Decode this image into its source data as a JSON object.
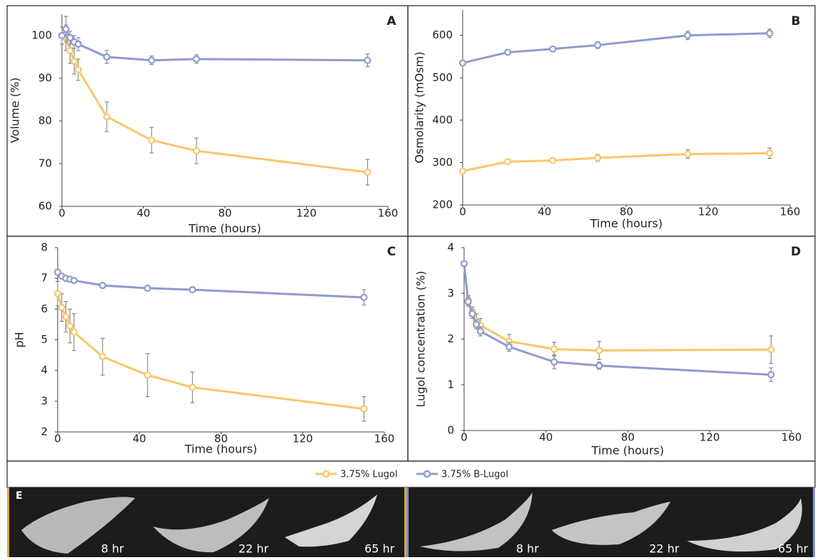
{
  "chart_data": [
    {
      "type": "line",
      "label": "A",
      "x_label": "Time (hours)",
      "y_label": "Volume (%)",
      "x": [
        0,
        2,
        4,
        6,
        8,
        22,
        44,
        66,
        150
      ],
      "xlim": [
        0,
        160
      ],
      "xticks": [
        0,
        40,
        80,
        120,
        160
      ],
      "ylim": [
        60,
        105
      ],
      "yticks": [
        60,
        70,
        80,
        90,
        100
      ],
      "series": [
        {
          "name": "3.75% Lugol",
          "color": "#f9c66b",
          "values": [
            100,
            99.5,
            96.5,
            94,
            92,
            81,
            75.5,
            73,
            68
          ],
          "errors": [
            2,
            3,
            3,
            3,
            2.5,
            3.5,
            3,
            3,
            3
          ]
        },
        {
          "name": "3.75% B-Lugol",
          "color": "#8e9bd0",
          "values": [
            100,
            101.5,
            99.5,
            98.5,
            98,
            95,
            94.2,
            94.5,
            94.2
          ],
          "errors": [
            2,
            3,
            1.5,
            1.5,
            1.5,
            1.5,
            1,
            1,
            1.5
          ]
        }
      ]
    },
    {
      "type": "line",
      "label": "B",
      "x_label": "Time (hours)",
      "y_label": "Osmolarity (mOsm)",
      "x": [
        0,
        22,
        44,
        66,
        110,
        150
      ],
      "xlim": [
        0,
        160
      ],
      "xticks": [
        0,
        40,
        80,
        120,
        160
      ],
      "ylim": [
        200,
        660
      ],
      "yticks": [
        200,
        300,
        400,
        500,
        600
      ],
      "series": [
        {
          "color": "#f9c66b",
          "values": [
            280,
            302,
            305,
            311,
            320,
            322
          ],
          "errors": [
            5,
            6,
            6,
            8,
            10,
            12
          ]
        },
        {
          "color": "#8e9bd0",
          "values": [
            535,
            560,
            568,
            577,
            600,
            605
          ],
          "errors": [
            3,
            5,
            5,
            8,
            10,
            10
          ]
        }
      ]
    },
    {
      "type": "line",
      "label": "C",
      "x_label": "Time (hours)",
      "y_label": "pH",
      "x": [
        0,
        2,
        4,
        6,
        8,
        22,
        44,
        66,
        150
      ],
      "xlim": [
        0,
        160
      ],
      "xticks": [
        0,
        40,
        80,
        120,
        160
      ],
      "ylim": [
        2,
        8
      ],
      "yticks": [
        2,
        3,
        4,
        5,
        6,
        7,
        8
      ],
      "series": [
        {
          "color": "#f9c66b",
          "values": [
            6.5,
            6.05,
            5.75,
            5.45,
            5.25,
            4.45,
            3.85,
            3.45,
            2.75
          ],
          "errors": [
            0.4,
            0.45,
            0.5,
            0.55,
            0.6,
            0.6,
            0.7,
            0.5,
            0.4
          ]
        },
        {
          "color": "#8e9bd0",
          "values": [
            7.2,
            7.07,
            7.0,
            6.97,
            6.93,
            6.77,
            6.68,
            6.63,
            6.38
          ],
          "errors": [
            0.05,
            0.05,
            0.05,
            0.05,
            0.05,
            0.05,
            0.05,
            0.05,
            0.25
          ]
        }
      ]
    },
    {
      "type": "line",
      "label": "D",
      "x_label": "Time (hours)",
      "y_label": "Lugol concentration (%)",
      "x": [
        0,
        2,
        4,
        6,
        8,
        22,
        44,
        66,
        150
      ],
      "xlim": [
        0,
        160
      ],
      "xticks": [
        0,
        40,
        80,
        120,
        160
      ],
      "ylim": [
        0,
        4
      ],
      "yticks": [
        0,
        1,
        2,
        3,
        4
      ],
      "series": [
        {
          "color": "#f9c66b",
          "values": [
            3.65,
            2.85,
            2.6,
            2.4,
            2.3,
            1.95,
            1.78,
            1.75,
            1.77
          ],
          "errors": [
            0.05,
            0.1,
            0.1,
            0.15,
            0.15,
            0.15,
            0.15,
            0.2,
            0.3
          ]
        },
        {
          "color": "#8e9bd0",
          "values": [
            3.65,
            2.82,
            2.55,
            2.32,
            2.17,
            1.83,
            1.5,
            1.42,
            1.22
          ],
          "errors": [
            0.05,
            0.1,
            0.1,
            0.1,
            0.1,
            0.1,
            0.15,
            0.08,
            0.15
          ]
        }
      ]
    }
  ],
  "images": {
    "label": "E",
    "captions": [
      "8 hr",
      "22 hr",
      "65 hr",
      "8 hr",
      "22 hr",
      "65 hr"
    ]
  }
}
